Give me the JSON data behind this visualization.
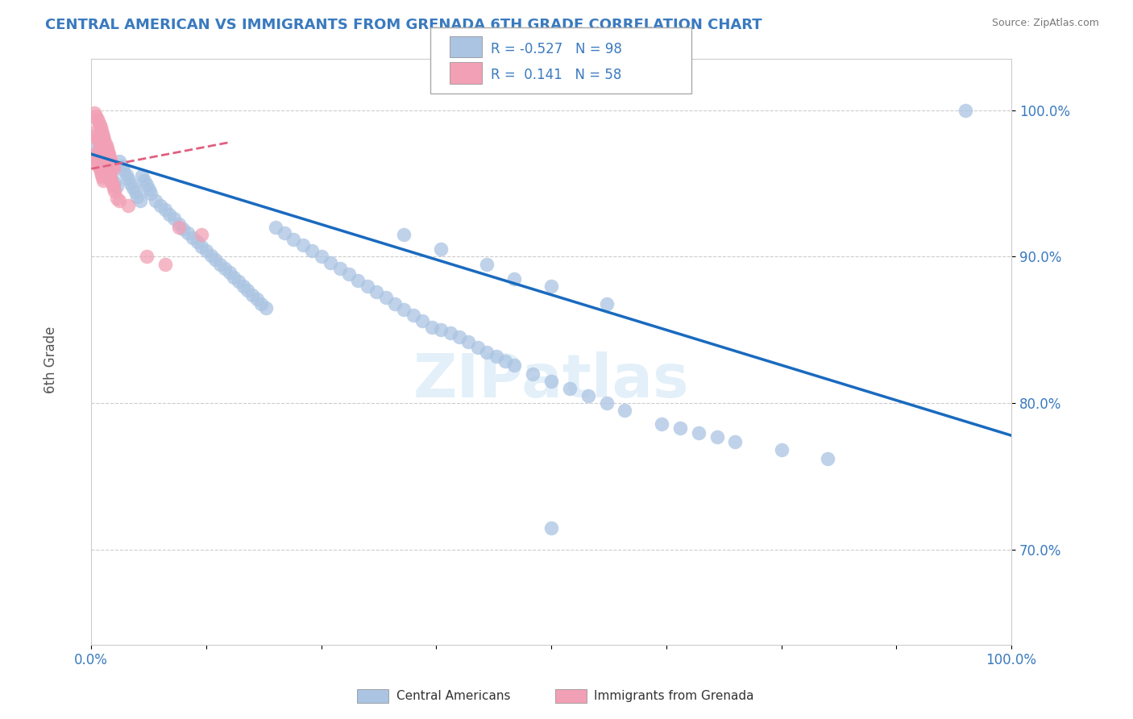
{
  "title": "CENTRAL AMERICAN VS IMMIGRANTS FROM GRENADA 6TH GRADE CORRELATION CHART",
  "source": "Source: ZipAtlas.com",
  "ylabel": "6th Grade",
  "xlim": [
    0.0,
    1.0
  ],
  "ylim": [
    0.635,
    1.035
  ],
  "yticks": [
    0.7,
    0.8,
    0.9,
    1.0
  ],
  "ytick_labels": [
    "70.0%",
    "80.0%",
    "90.0%",
    "100.0%"
  ],
  "xticks": [
    0.0,
    0.125,
    0.25,
    0.375,
    0.5,
    0.625,
    0.75,
    0.875,
    1.0
  ],
  "xtick_labels": [
    "0.0%",
    "",
    "",
    "",
    "",
    "",
    "",
    "",
    "100.0%"
  ],
  "blue_R": -0.527,
  "blue_N": 98,
  "pink_R": 0.141,
  "pink_N": 58,
  "blue_color": "#aac4e2",
  "pink_color": "#f2a0b5",
  "blue_line_color": "#1a6abf",
  "pink_line_color": "#e06080",
  "watermark": "ZIPatlas",
  "blue_scatter_x": [
    0.005,
    0.008,
    0.01,
    0.012,
    0.015,
    0.018,
    0.02,
    0.022,
    0.025,
    0.028,
    0.03,
    0.033,
    0.035,
    0.038,
    0.04,
    0.043,
    0.045,
    0.048,
    0.05,
    0.053,
    0.055,
    0.058,
    0.06,
    0.063,
    0.065,
    0.07,
    0.075,
    0.08,
    0.085,
    0.09,
    0.095,
    0.1,
    0.105,
    0.11,
    0.115,
    0.12,
    0.125,
    0.13,
    0.135,
    0.14,
    0.145,
    0.15,
    0.155,
    0.16,
    0.165,
    0.17,
    0.175,
    0.18,
    0.185,
    0.19,
    0.2,
    0.21,
    0.22,
    0.23,
    0.24,
    0.25,
    0.26,
    0.27,
    0.28,
    0.29,
    0.3,
    0.31,
    0.32,
    0.33,
    0.34,
    0.35,
    0.36,
    0.37,
    0.38,
    0.39,
    0.4,
    0.41,
    0.42,
    0.43,
    0.44,
    0.45,
    0.46,
    0.48,
    0.5,
    0.52,
    0.54,
    0.56,
    0.58,
    0.62,
    0.64,
    0.66,
    0.68,
    0.7,
    0.75,
    0.8,
    0.34,
    0.38,
    0.43,
    0.46,
    0.5,
    0.56,
    0.95,
    0.5
  ],
  "blue_scatter_y": [
    0.975,
    0.972,
    0.969,
    0.966,
    0.963,
    0.96,
    0.957,
    0.954,
    0.951,
    0.948,
    0.965,
    0.962,
    0.959,
    0.956,
    0.953,
    0.95,
    0.947,
    0.944,
    0.941,
    0.938,
    0.955,
    0.952,
    0.949,
    0.946,
    0.943,
    0.938,
    0.935,
    0.932,
    0.929,
    0.926,
    0.922,
    0.919,
    0.916,
    0.913,
    0.91,
    0.907,
    0.904,
    0.901,
    0.898,
    0.895,
    0.892,
    0.889,
    0.886,
    0.883,
    0.88,
    0.877,
    0.874,
    0.871,
    0.868,
    0.865,
    0.92,
    0.916,
    0.912,
    0.908,
    0.904,
    0.9,
    0.896,
    0.892,
    0.888,
    0.884,
    0.88,
    0.876,
    0.872,
    0.868,
    0.864,
    0.86,
    0.856,
    0.852,
    0.85,
    0.848,
    0.845,
    0.842,
    0.838,
    0.835,
    0.832,
    0.829,
    0.826,
    0.82,
    0.815,
    0.81,
    0.805,
    0.8,
    0.795,
    0.786,
    0.783,
    0.78,
    0.777,
    0.774,
    0.768,
    0.762,
    0.915,
    0.905,
    0.895,
    0.885,
    0.88,
    0.868,
    1.0,
    0.715
  ],
  "pink_scatter_x": [
    0.003,
    0.005,
    0.007,
    0.008,
    0.009,
    0.01,
    0.011,
    0.012,
    0.013,
    0.014,
    0.015,
    0.016,
    0.017,
    0.018,
    0.019,
    0.02,
    0.021,
    0.022,
    0.023,
    0.024,
    0.003,
    0.005,
    0.007,
    0.008,
    0.009,
    0.01,
    0.011,
    0.012,
    0.013,
    0.014,
    0.015,
    0.016,
    0.017,
    0.018,
    0.019,
    0.02,
    0.021,
    0.022,
    0.023,
    0.024,
    0.003,
    0.005,
    0.006,
    0.007,
    0.008,
    0.009,
    0.01,
    0.011,
    0.012,
    0.013,
    0.06,
    0.08,
    0.095,
    0.12,
    0.025,
    0.028,
    0.03,
    0.04
  ],
  "pink_scatter_y": [
    0.998,
    0.996,
    0.994,
    0.992,
    0.99,
    0.988,
    0.986,
    0.984,
    0.982,
    0.98,
    0.978,
    0.976,
    0.974,
    0.972,
    0.97,
    0.968,
    0.966,
    0.964,
    0.962,
    0.96,
    0.985,
    0.983,
    0.981,
    0.979,
    0.977,
    0.975,
    0.973,
    0.971,
    0.969,
    0.967,
    0.965,
    0.963,
    0.961,
    0.959,
    0.957,
    0.955,
    0.953,
    0.951,
    0.949,
    0.947,
    0.97,
    0.968,
    0.966,
    0.964,
    0.962,
    0.96,
    0.958,
    0.956,
    0.954,
    0.952,
    0.9,
    0.895,
    0.92,
    0.915,
    0.945,
    0.94,
    0.938,
    0.935
  ],
  "blue_trendline_x": [
    0.0,
    1.0
  ],
  "blue_trendline_y": [
    0.97,
    0.778
  ],
  "pink_trendline_x": [
    0.0,
    0.15
  ],
  "pink_trendline_y": [
    0.96,
    0.978
  ]
}
